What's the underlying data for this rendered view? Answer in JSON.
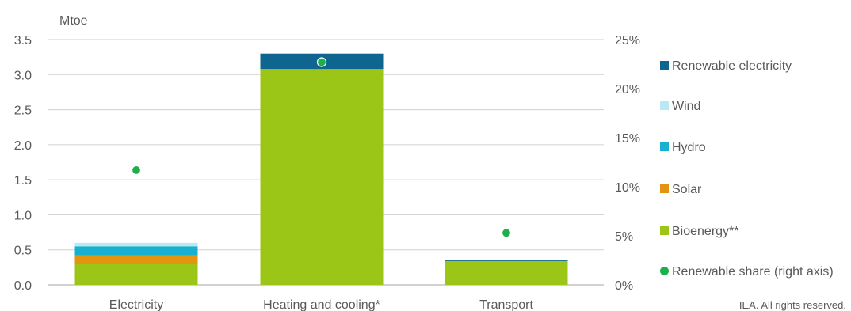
{
  "chart_data": {
    "type": "bar",
    "stacked": true,
    "y_unit_label": "Mtoe",
    "categories": [
      "Electricity",
      "Heating and cooling*",
      "Transport"
    ],
    "series": [
      {
        "name": "Bioenergy**",
        "color": "#9bc617",
        "values": [
          0.3,
          3.08,
          0.34
        ]
      },
      {
        "name": "Solar",
        "color": "#e39512",
        "values": [
          0.12,
          0.0,
          0.0
        ]
      },
      {
        "name": "Hydro",
        "color": "#17b0d0",
        "values": [
          0.13,
          0.0,
          0.0
        ]
      },
      {
        "name": "Wind",
        "color": "#b7eaf5",
        "values": [
          0.05,
          0.0,
          0.0
        ]
      },
      {
        "name": "Renewable electricity",
        "color": "#0e6690",
        "values": [
          0.0,
          0.22,
          0.02
        ]
      }
    ],
    "secondary_series": {
      "name": "Renewable share (right axis)",
      "type": "scatter",
      "color": "#1cb04a",
      "values_percent": [
        11.7,
        22.7,
        5.3
      ]
    },
    "ylim": [
      0,
      3.5
    ],
    "y_ticks": [
      "0.0",
      "0.5",
      "1.0",
      "1.5",
      "2.0",
      "2.5",
      "3.0",
      "3.5"
    ],
    "y2lim": [
      0,
      25
    ],
    "y2_ticks": [
      "0%",
      "5%",
      "10%",
      "15%",
      "20%",
      "25%"
    ],
    "grid": true,
    "legend_position": "right",
    "legend_order": [
      "Renewable electricity",
      "Wind",
      "Hydro",
      "Solar",
      "Bioenergy**",
      "Renewable share (right axis)"
    ]
  },
  "credit": "IEA. All rights reserved."
}
